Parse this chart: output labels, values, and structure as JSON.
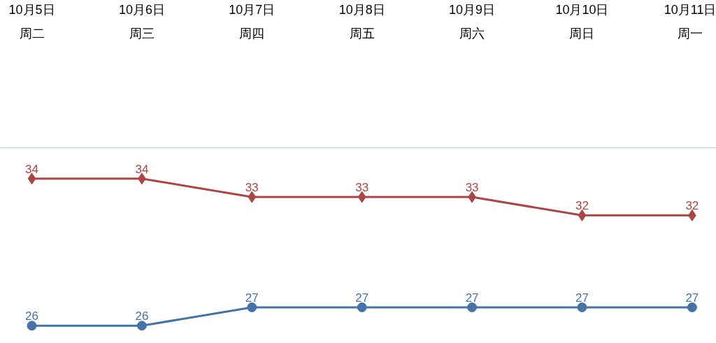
{
  "chart_data": {
    "type": "line",
    "categories": [
      "10月5日周二",
      "10月6日周三",
      "10月7日周四",
      "10月8日周五",
      "10月9日周六",
      "10月10日周日",
      "10月11日周一"
    ],
    "series": [
      {
        "color": "#aa4643",
        "marker": "diamond",
        "values": [
          34,
          34,
          33,
          33,
          33,
          32,
          32
        ]
      },
      {
        "color": "#4572a7",
        "marker": "circle",
        "values": [
          26,
          26,
          27,
          27,
          27,
          27,
          27
        ]
      }
    ],
    "data_labels": true,
    "grid": false,
    "tick_labels": "x"
  }
}
